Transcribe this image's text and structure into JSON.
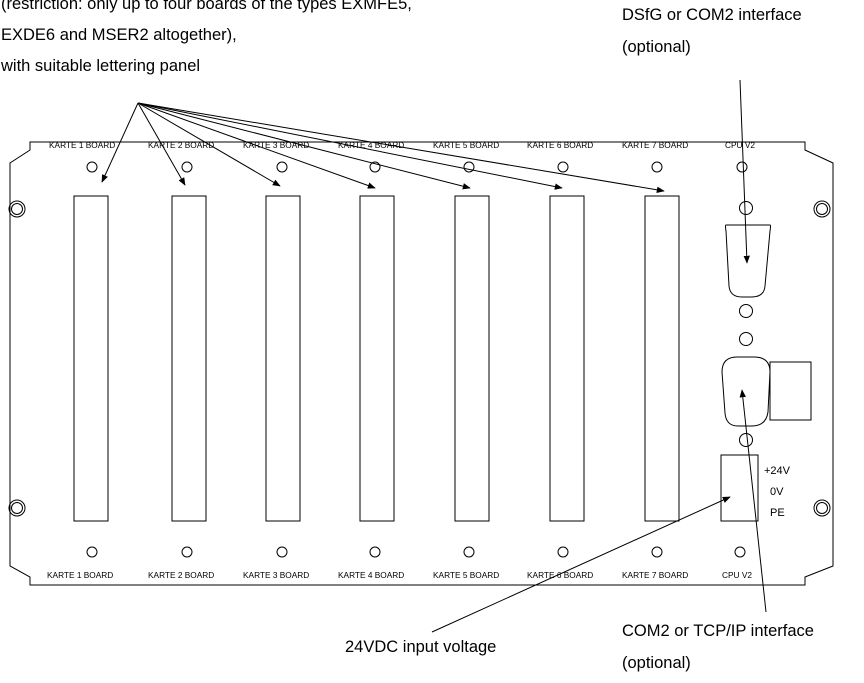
{
  "annotations": {
    "boards_line1": "(restriction: only up to four boards of the types EXMFE5,",
    "boards_line2": "EXDE6 and MSER2 altogether),",
    "boards_line3": "with suitable lettering panel",
    "dsfg_line1": "DSfG or COM2 interface",
    "dsfg_line2": "(optional)",
    "power_label": "24VDC input voltage",
    "com2_line1": "COM2 or TCP/IP interface",
    "com2_line2": "(optional)"
  },
  "slot_labels": [
    "KARTE 1 BOARD",
    "KARTE 2 BOARD",
    "KARTE 3 BOARD",
    "KARTE 4 BOARD",
    "KARTE 5 BOARD",
    "KARTE 6 BOARD",
    "KARTE 7 BOARD",
    "CPU V2"
  ],
  "power_terminals": [
    "+24V",
    "0V",
    "PE"
  ]
}
